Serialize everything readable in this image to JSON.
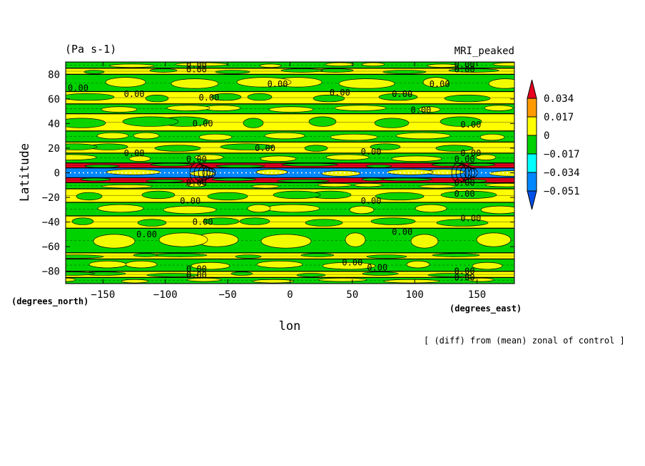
{
  "chart_data": {
    "type": "heatmap",
    "title": "MRI_peaked",
    "units_label": "(Pa s-1)",
    "xlabel": "lon",
    "ylabel": "Latitude",
    "x_unit_label": "(degrees_east)",
    "y_unit_label": "(degrees_north)",
    "footnote": "[ (diff) from (mean) zonal of control ]",
    "xlim": [
      -180,
      180
    ],
    "ylim": [
      -90,
      90
    ],
    "x_ticks": [
      -150,
      -100,
      -50,
      0,
      50,
      100,
      150
    ],
    "y_ticks": [
      -80,
      -60,
      -40,
      -20,
      0,
      20,
      40,
      60,
      80
    ],
    "x_tick_labels": [
      "−150",
      "−100",
      "−50",
      "0",
      "50",
      "100",
      "150"
    ],
    "y_tick_labels": [
      "−80",
      "−60",
      "−40",
      "−20",
      "0",
      "20",
      "40",
      "60",
      "80"
    ],
    "colorbar": {
      "levels": [
        0.034,
        0.017,
        0,
        -0.017,
        -0.034,
        -0.051
      ],
      "level_labels": [
        "0.034",
        "0.017",
        "0",
        "−0.017",
        "−0.034",
        "−0.051"
      ],
      "colors": [
        "#e8001e",
        "#ff9a00",
        "#ffff00",
        "#00d200",
        "#00ffff",
        "#0088ff",
        "#0050e8"
      ]
    },
    "latitude_bands": [
      {
        "lat_min": -90,
        "lat_max": -85,
        "value": -0.005
      },
      {
        "lat_min": -85,
        "lat_max": -80,
        "value": 0.005
      },
      {
        "lat_min": -80,
        "lat_max": -70,
        "value": -0.005
      },
      {
        "lat_min": -70,
        "lat_max": -65,
        "value": 0.005
      },
      {
        "lat_min": -65,
        "lat_max": -45,
        "value": -0.005
      },
      {
        "lat_min": -45,
        "lat_max": -35,
        "value": 0.005
      },
      {
        "lat_min": -35,
        "lat_max": -24,
        "value": -0.005
      },
      {
        "lat_min": -24,
        "lat_max": -13,
        "value": 0.005
      },
      {
        "lat_min": -13,
        "lat_max": -8,
        "value": -0.005
      },
      {
        "lat_min": -8,
        "lat_max": -4,
        "value": 0.036
      },
      {
        "lat_min": -4,
        "lat_max": 4,
        "value": -0.04
      },
      {
        "lat_min": 4,
        "lat_max": 8,
        "value": 0.036
      },
      {
        "lat_min": 8,
        "lat_max": 16,
        "value": -0.005
      },
      {
        "lat_min": 16,
        "lat_max": 25,
        "value": 0.005
      },
      {
        "lat_min": 25,
        "lat_max": 34,
        "value": -0.005
      },
      {
        "lat_min": 34,
        "lat_max": 48,
        "value": 0.005
      },
      {
        "lat_min": 48,
        "lat_max": 56,
        "value": -0.005
      },
      {
        "lat_min": 56,
        "lat_max": 66,
        "value": 0.005
      },
      {
        "lat_min": 66,
        "lat_max": 80,
        "value": -0.005
      },
      {
        "lat_min": 80,
        "lat_max": 85,
        "value": 0.005
      },
      {
        "lat_min": 85,
        "lat_max": 90,
        "value": -0.005
      }
    ],
    "contour_labels": [
      {
        "text": "0.00",
        "lon": -75,
        "lat": 88
      },
      {
        "text": "0.00",
        "lon": -75,
        "lat": 84
      },
      {
        "text": "0.00",
        "lon": 140,
        "lat": 88
      },
      {
        "text": "0.00",
        "lon": 140,
        "lat": 84
      },
      {
        "text": "0.00",
        "lon": -170,
        "lat": 69
      },
      {
        "text": "0.00",
        "lon": -125,
        "lat": 64
      },
      {
        "text": "0.00",
        "lon": -65,
        "lat": 61
      },
      {
        "text": "0.00",
        "lon": -10,
        "lat": 72
      },
      {
        "text": "0.00",
        "lon": 40,
        "lat": 65
      },
      {
        "text": "0.00",
        "lon": 90,
        "lat": 64
      },
      {
        "text": "0.00",
        "lon": 120,
        "lat": 72
      },
      {
        "text": "0.00",
        "lon": 105,
        "lat": 51
      },
      {
        "text": "0.00",
        "lon": -70,
        "lat": 40
      },
      {
        "text": "0.00",
        "lon": 145,
        "lat": 39
      },
      {
        "text": "0.00",
        "lon": -125,
        "lat": 16
      },
      {
        "text": "0.00",
        "lon": -20,
        "lat": 20
      },
      {
        "text": "0.00",
        "lon": 65,
        "lat": 17
      },
      {
        "text": "0.00",
        "lon": 145,
        "lat": 16
      },
      {
        "text": "0.00",
        "lon": -75,
        "lat": 11
      },
      {
        "text": "0.00",
        "lon": 140,
        "lat": 11
      },
      {
        "text": "0.00",
        "lon": -75,
        "lat": -8
      },
      {
        "text": "0.00",
        "lon": 140,
        "lat": -8
      },
      {
        "text": "0.00",
        "lon": -80,
        "lat": -23
      },
      {
        "text": "0.00",
        "lon": 65,
        "lat": -23
      },
      {
        "text": "0.00",
        "lon": 140,
        "lat": -17
      },
      {
        "text": "0.00",
        "lon": -70,
        "lat": -40
      },
      {
        "text": "0.00",
        "lon": 145,
        "lat": -37
      },
      {
        "text": "0.00",
        "lon": -115,
        "lat": -50
      },
      {
        "text": "0.00",
        "lon": 90,
        "lat": -48
      },
      {
        "text": "0.00",
        "lon": 50,
        "lat": -73
      },
      {
        "text": "0.00",
        "lon": 70,
        "lat": -77
      },
      {
        "text": "0.00",
        "lon": -75,
        "lat": -78
      },
      {
        "text": "0.00",
        "lon": -75,
        "lat": -83
      },
      {
        "text": "0.00",
        "lon": 140,
        "lat": -80
      },
      {
        "text": "0.00",
        "lon": 140,
        "lat": -85
      }
    ]
  }
}
